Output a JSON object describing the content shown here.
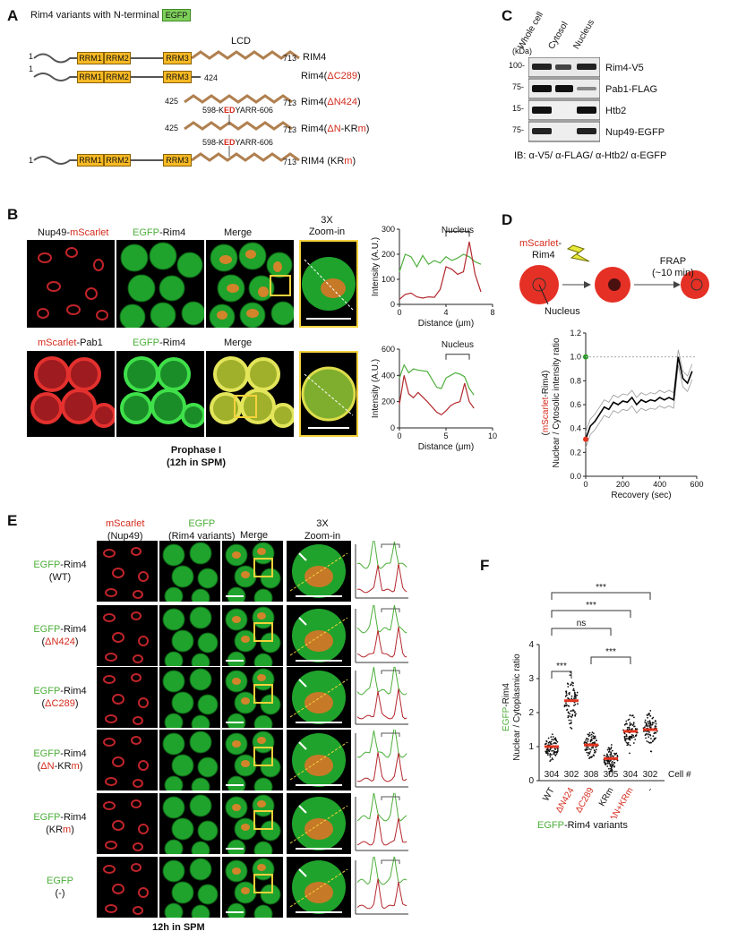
{
  "panelA": {
    "label": "A",
    "title": "Rim4 variants with N-terminal",
    "egfp_tag": "EGFP",
    "lcd": "LCD",
    "rrm1": "RRM1",
    "rrm2": "RRM2",
    "rrm3": "RRM3",
    "rows": [
      {
        "start": "1",
        "end": "713",
        "name": "RIM4"
      },
      {
        "start": "1",
        "end": "424",
        "name_prefix": "Rim4(",
        "name_red": "ΔC289",
        "name_suffix": ")"
      },
      {
        "start": "425",
        "end": "713",
        "name_prefix": "Rim4(",
        "name_red": "ΔN424",
        "name_suffix": ")"
      },
      {
        "start": "425",
        "end": "713",
        "name_prefix": "Rim4(",
        "name_red": "ΔN",
        "name_mid": "-KR",
        "name_red2": "m",
        "name_suffix": ")"
      },
      {
        "start": "1",
        "end": "713",
        "name_prefix": "RIM4 (KR",
        "name_red": "m",
        "name_suffix": ")"
      }
    ],
    "mut_a": "598-K",
    "mut_red": "ED",
    "mut_b": "YARR-606"
  },
  "panelC": {
    "label": "C",
    "kda": "(kDa)",
    "lanes": [
      "Whole cell",
      "Cytosol",
      "Nucleus"
    ],
    "blots": [
      {
        "marker": "100-",
        "name": "Rim4-V5"
      },
      {
        "marker": "75-",
        "name": "Pab1-FLAG"
      },
      {
        "marker": "15-",
        "name": "Htb2"
      },
      {
        "marker": "75-",
        "name": "Nup49-EGFP"
      }
    ],
    "ib": "IB: α-V5/ α-FLAG/ α-Htb2/ α-EGFP"
  },
  "panelB": {
    "label": "B",
    "row1": {
      "c1a": "Nup49-",
      "c1b": "mScarlet",
      "c2a": "EGFP",
      "c2b": "-Rim4",
      "c3": "Merge"
    },
    "row2": {
      "c1a": "mScarlet",
      "c1b": "-Pab1",
      "c2a": "EGFP",
      "c2b": "-Rim4",
      "c3": "Merge"
    },
    "zoom": [
      "3X",
      "Zoom-in"
    ],
    "footer": [
      "Prophase I",
      "(12h in SPM)"
    ],
    "plot1": {
      "ylabel": "Intensity (A.U.)",
      "xlabel": "Distance (μm)",
      "yticks": [
        "0",
        "100",
        "200",
        "300"
      ],
      "xticks": [
        "0",
        "4",
        "8"
      ],
      "bracket": "Nucleus"
    },
    "plot2": {
      "ylabel": "Intensity (A.U.)",
      "xlabel": "Distance (μm)",
      "yticks": [
        "0",
        "200",
        "400",
        "600"
      ],
      "xticks": [
        "0",
        "5",
        "10"
      ],
      "bracket": "Nucleus"
    }
  },
  "panelD": {
    "label": "D",
    "probe_a": "mScarlet",
    "probe_b": "-",
    "probe_c": "Rim4",
    "nucleus": "Nucleus",
    "frap": "FRAP",
    "frap_time": "(~10 min)",
    "ylabel_a": "(",
    "ylabel_red": "mScarlet",
    "ylabel_b": "-Rim4)",
    "ylabel2": "Nuclear / Cytosolic intensity ratio",
    "xlabel": "Recovery (sec)",
    "yticks": [
      "0.0",
      "0.2",
      "0.4",
      "0.6",
      "0.8",
      "1.0",
      "1.2"
    ],
    "xticks": [
      "0",
      "200",
      "400",
      "600"
    ]
  },
  "panelE": {
    "label": "E",
    "col1": [
      "mScarlet",
      "(Nup49)"
    ],
    "col2": [
      "EGFP",
      "(Rim4 variants)"
    ],
    "col3": "Merge",
    "col4": [
      "3X",
      "Zoom-in"
    ],
    "rows": [
      {
        "a": "EGFP",
        "b": "-Rim4",
        "c": "(WT)"
      },
      {
        "a": "EGFP",
        "b": "-Rim4",
        "c_pre": "(",
        "c_red": "ΔN424",
        "c_post": ")"
      },
      {
        "a": "EGFP",
        "b": "-Rim4",
        "c_pre": "(",
        "c_red": "ΔC289",
        "c_post": ")"
      },
      {
        "a": "EGFP",
        "b": "-Rim4",
        "c_pre": "(",
        "c_red": "ΔN",
        "c_mid": "-KR",
        "c_red2": "m",
        "c_post": ")"
      },
      {
        "a": "EGFP",
        "b": "-Rim4",
        "c_pre": "(KR",
        "c_red": "m",
        "c_post": ")"
      },
      {
        "a": "EGFP",
        "b": "",
        "c": "(-)"
      }
    ],
    "footer": "12h in SPM"
  },
  "panelF": {
    "label": "F",
    "ylabel_a": "EGFP",
    "ylabel_b": "-Rim4",
    "ylabel2": "Nuclear / Cytoplasmic ratio",
    "yticks": [
      "0",
      "1",
      "2",
      "3",
      "4"
    ],
    "cells_label": "Cell #",
    "footer_a": "EGFP",
    "footer_b": "-Rim4 variants",
    "sig": [
      "***",
      "***",
      "ns",
      "***",
      "***"
    ]
  },
  "chart_data": [
    {
      "type": "line",
      "panel": "B-top",
      "xlabel": "Distance (μm)",
      "ylabel": "Intensity (A.U.)",
      "xlim": [
        0,
        8
      ],
      "ylim": [
        0,
        300
      ],
      "series": [
        {
          "color": "#4caf3a",
          "x": [
            0,
            0.5,
            1,
            1.5,
            2,
            2.5,
            3,
            3.5,
            4,
            4.5,
            5,
            5.5,
            6,
            6.5,
            7
          ],
          "values": [
            130,
            200,
            190,
            150,
            195,
            160,
            175,
            165,
            190,
            175,
            185,
            200,
            190,
            170,
            160
          ]
        },
        {
          "color": "#b3282d",
          "x": [
            0,
            0.5,
            1,
            1.5,
            2,
            2.5,
            3,
            3.5,
            4,
            4.5,
            5,
            5.5,
            6,
            6.5,
            7
          ],
          "values": [
            20,
            40,
            45,
            30,
            25,
            30,
            28,
            60,
            150,
            140,
            120,
            130,
            250,
            120,
            50
          ]
        }
      ]
    },
    {
      "type": "line",
      "panel": "B-bottom",
      "xlabel": "Distance (μm)",
      "ylabel": "Intensity (A.U.)",
      "xlim": [
        0,
        10
      ],
      "ylim": [
        0,
        600
      ],
      "series": [
        {
          "color": "#4caf3a",
          "x": [
            0,
            0.5,
            1,
            1.5,
            2,
            3,
            4,
            4.5,
            5,
            5.5,
            6,
            6.5,
            7,
            7.5,
            8
          ],
          "values": [
            380,
            480,
            420,
            450,
            440,
            430,
            310,
            300,
            380,
            400,
            420,
            410,
            390,
            300,
            250
          ]
        },
        {
          "color": "#b3282d",
          "x": [
            0,
            0.5,
            1,
            1.5,
            2,
            3,
            4,
            4.5,
            5,
            5.5,
            6,
            6.5,
            7,
            7.5,
            8
          ],
          "values": [
            180,
            400,
            260,
            230,
            270,
            200,
            120,
            100,
            130,
            170,
            190,
            200,
            340,
            200,
            150
          ]
        }
      ]
    },
    {
      "type": "line",
      "panel": "D",
      "xlabel": "Recovery (sec)",
      "ylabel": "Nuclear / Cytosolic intensity ratio",
      "xlim": [
        0,
        600
      ],
      "ylim": [
        0,
        1.2
      ],
      "pre_bleach": 1.0,
      "post_bleach": 0.31,
      "series": [
        {
          "name": "mean",
          "x": [
            0,
            25,
            50,
            75,
            100,
            125,
            150,
            175,
            200,
            225,
            250,
            275,
            300,
            325,
            350,
            375,
            400,
            425,
            450,
            475,
            500,
            525,
            550,
            575
          ],
          "values": [
            0.31,
            0.42,
            0.46,
            0.52,
            0.58,
            0.56,
            0.62,
            0.6,
            0.63,
            0.62,
            0.66,
            0.6,
            0.64,
            0.62,
            0.64,
            0.63,
            0.66,
            0.64,
            0.66,
            0.64,
            1.0,
            0.82,
            0.78,
            0.88
          ]
        }
      ]
    },
    {
      "type": "scatter",
      "panel": "F",
      "ylabel": "Nuclear / Cytoplasmic ratio",
      "ylim": [
        0,
        4
      ],
      "categories": [
        "WT",
        "ΔN424",
        "ΔC289",
        "KRm",
        "ΔN+KRm",
        "-"
      ],
      "medians": [
        1.0,
        2.35,
        1.05,
        0.65,
        1.45,
        1.5
      ],
      "cell_counts": [
        "304",
        "302",
        "308",
        "305",
        "304",
        "302"
      ]
    }
  ]
}
